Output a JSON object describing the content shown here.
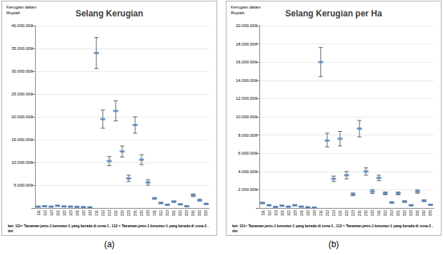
{
  "chart_data": [
    {
      "type": "scatter",
      "title": "Selang Kerugian",
      "y_label": "Kerugian dalam Rupiah",
      "note": "ket: 111= Tanaman jenis-1 berumur-1 yang berada di zona-1 , 112 = Tanaman jenis-1 berumur-1 yang berada di zona-2 , dst",
      "caption": "(a)",
      "categories": [
        "111",
        "112",
        "113",
        "121",
        "122",
        "123",
        "131",
        "132",
        "133",
        "211",
        "212",
        "213",
        "221",
        "222",
        "223",
        "231",
        "232",
        "233",
        "311",
        "312",
        "313",
        "321",
        "322",
        "323",
        "331",
        "332",
        "333"
      ],
      "values": [
        300000,
        400000,
        300000,
        500000,
        350000,
        300000,
        250000,
        200000,
        150000,
        34000000,
        19500000,
        10300000,
        21300000,
        12400000,
        6500000,
        18200000,
        10600000,
        5600000,
        2100000,
        1100000,
        700000,
        1400000,
        800000,
        400000,
        2800000,
        1700000,
        900000
      ],
      "range_low": [
        250000,
        340000,
        250000,
        430000,
        300000,
        250000,
        200000,
        160000,
        120000,
        30600000,
        17500000,
        9300000,
        19100000,
        11200000,
        5800000,
        16400000,
        9500000,
        5000000,
        1900000,
        950000,
        600000,
        1250000,
        700000,
        330000,
        2500000,
        1500000,
        780000
      ],
      "range_high": [
        350000,
        460000,
        350000,
        570000,
        400000,
        350000,
        300000,
        240000,
        180000,
        37400000,
        21500000,
        11300000,
        23500000,
        13600000,
        7200000,
        20000000,
        11700000,
        6200000,
        2300000,
        1250000,
        800000,
        1550000,
        900000,
        470000,
        3100000,
        1900000,
        1020000
      ],
      "color": "#4f81bd",
      "marker": "dash",
      "ylim": [
        0,
        40000000
      ],
      "yticks": [
        {
          "value": 0,
          "label": "-"
        },
        {
          "value": 5000000,
          "label": "5.000.000"
        },
        {
          "value": 10000000,
          "label": "10.000.000"
        },
        {
          "value": 15000000,
          "label": "15.000.000"
        },
        {
          "value": 20000000,
          "label": "20.000.000"
        },
        {
          "value": 25000000,
          "label": "25.000.000"
        },
        {
          "value": 30000000,
          "label": "30.000.000"
        },
        {
          "value": 35000000,
          "label": "35.000.000"
        },
        {
          "value": 40000000,
          "label": "40.000.000"
        }
      ],
      "grid": true
    },
    {
      "type": "scatter",
      "title": "Selang Kerugian per Ha",
      "y_label": "Kerugian dalam Rupiah",
      "note": "ket: 111= Tanaman jenis-1 berumur-1 yang berada di zona-1 , 112 = Tanaman jenis-1 berumur-1 yang berada di zona-2 , dst",
      "caption": "(b)",
      "categories": [
        "111",
        "112",
        "113",
        "121",
        "122",
        "123",
        "131",
        "132",
        "133",
        "211",
        "212",
        "213",
        "221",
        "222",
        "223",
        "231",
        "232",
        "233",
        "311",
        "312",
        "313",
        "321",
        "322",
        "323",
        "331",
        "332",
        "333"
      ],
      "values": [
        550000,
        300000,
        120000,
        250000,
        150000,
        300000,
        150000,
        80000,
        50000,
        16000000,
        7400000,
        3200000,
        7600000,
        3600000,
        1500000,
        8700000,
        4000000,
        1800000,
        3300000,
        1600000,
        600000,
        1600000,
        700000,
        300000,
        1800000,
        800000,
        350000
      ],
      "range_low": [
        480000,
        250000,
        90000,
        200000,
        110000,
        240000,
        110000,
        50000,
        30000,
        14400000,
        6700000,
        2900000,
        6800000,
        3200000,
        1350000,
        7800000,
        3600000,
        1600000,
        3000000,
        1450000,
        520000,
        1450000,
        610000,
        240000,
        1620000,
        700000,
        290000
      ],
      "range_high": [
        620000,
        350000,
        150000,
        300000,
        190000,
        360000,
        190000,
        110000,
        70000,
        17600000,
        8200000,
        3500000,
        8400000,
        4000000,
        1650000,
        9600000,
        4400000,
        2000000,
        3600000,
        1750000,
        680000,
        1750000,
        790000,
        360000,
        1980000,
        900000,
        410000
      ],
      "color": "#4f81bd",
      "marker": "dash",
      "ylim": [
        0,
        20000000
      ],
      "yticks": [
        {
          "value": 0,
          "label": "-"
        },
        {
          "value": 2000000,
          "label": "2.000.000"
        },
        {
          "value": 4000000,
          "label": "4.000.000"
        },
        {
          "value": 6000000,
          "label": "6.000.000"
        },
        {
          "value": 8000000,
          "label": "8.000.000"
        },
        {
          "value": 10000000,
          "label": "10.000.000"
        },
        {
          "value": 12000000,
          "label": "12.000.000"
        },
        {
          "value": 14000000,
          "label": "14.000.000"
        },
        {
          "value": 16000000,
          "label": "16.000.000"
        },
        {
          "value": 18000000,
          "label": "18.000.000"
        },
        {
          "value": 20000000,
          "label": "20.000.000"
        }
      ],
      "grid": true
    }
  ]
}
